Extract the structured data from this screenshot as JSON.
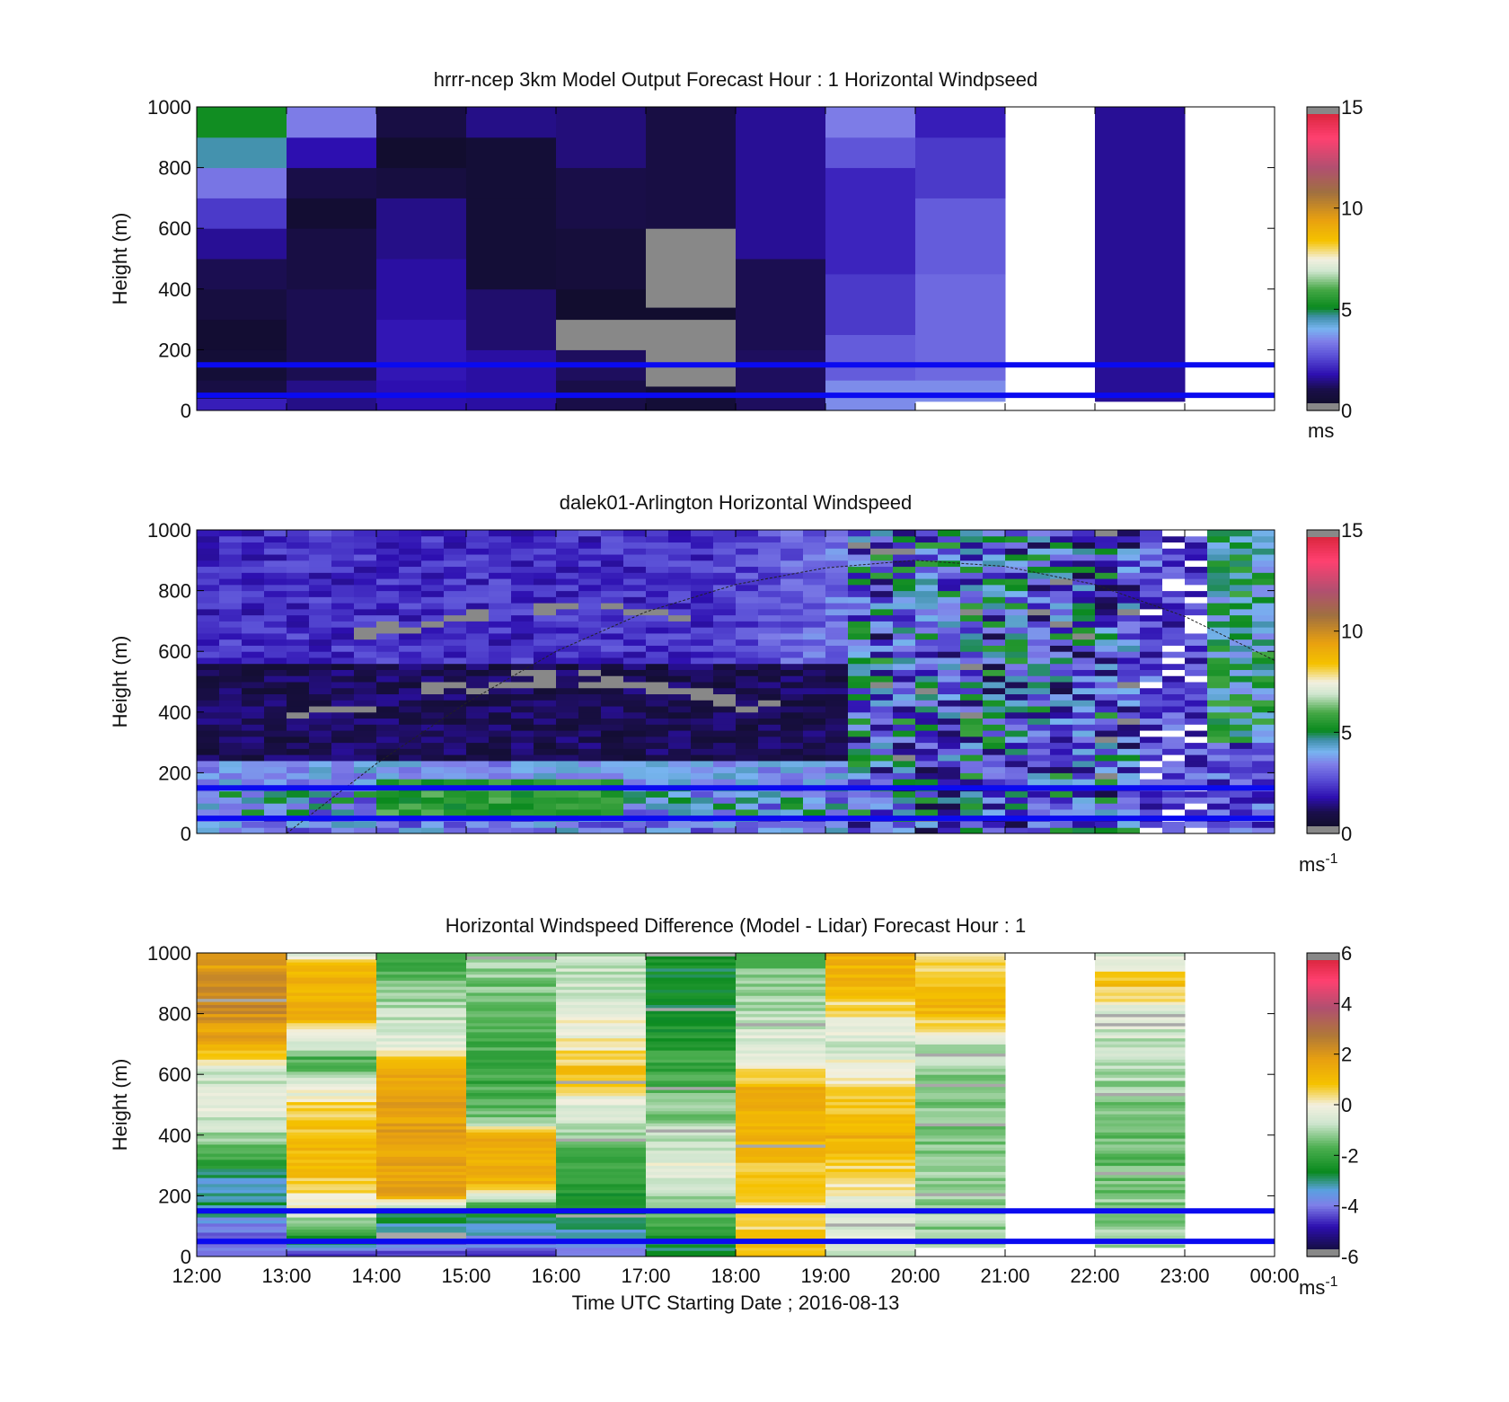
{
  "chart_data": [
    {
      "type": "heatmap",
      "title": "hrrr-ncep 3km Model Output   Forecast Hour : 1 Horizontal Windpseed",
      "ylabel": "Height (m)",
      "xlabel": "",
      "xlim": [
        "12:00",
        "00:00"
      ],
      "ylim": [
        0,
        1000
      ],
      "y_ticks": [
        "0",
        "200",
        "400",
        "600",
        "800",
        "1000"
      ],
      "colorbar": {
        "min": 0,
        "max": 15,
        "ticks": [
          "0",
          "5",
          "10",
          "15"
        ],
        "unit": "ms"
      },
      "hlines_m": [
        150,
        50
      ],
      "columns": [
        {
          "start_hour": 0,
          "top_m": 1000,
          "bands": [
            {
              "from": 0,
              "to": 40,
              "value": 2.0
            },
            {
              "from": 40,
              "to": 100,
              "value": 0.9
            },
            {
              "from": 100,
              "to": 200,
              "value": 0.6
            },
            {
              "from": 200,
              "to": 300,
              "value": 0.5
            },
            {
              "from": 300,
              "to": 400,
              "value": 0.8
            },
            {
              "from": 400,
              "to": 500,
              "value": 1.1
            },
            {
              "from": 500,
              "to": 600,
              "value": 1.6
            },
            {
              "from": 600,
              "to": 700,
              "value": 2.4
            },
            {
              "from": 700,
              "to": 800,
              "value": 3.3
            },
            {
              "from": 800,
              "to": 900,
              "value": 4.6
            },
            {
              "from": 900,
              "to": 1000,
              "value": 5.2
            }
          ]
        },
        {
          "start_hour": 1,
          "top_m": 1000,
          "bands": [
            {
              "from": 0,
              "to": 100,
              "value": 1.5
            },
            {
              "from": 100,
              "to": 400,
              "value": 1.1
            },
            {
              "from": 400,
              "to": 600,
              "value": 0.9
            },
            {
              "from": 600,
              "to": 700,
              "value": 0.5
            },
            {
              "from": 700,
              "to": 800,
              "value": 1.0
            },
            {
              "from": 800,
              "to": 900,
              "value": 1.8
            },
            {
              "from": 900,
              "to": 1000,
              "value": 3.4
            }
          ]
        },
        {
          "start_hour": 2,
          "top_m": 1000,
          "bands": [
            {
              "from": 0,
              "to": 100,
              "value": 1.8
            },
            {
              "from": 100,
              "to": 300,
              "value": 1.9
            },
            {
              "from": 300,
              "to": 500,
              "value": 1.7
            },
            {
              "from": 500,
              "to": 700,
              "value": 1.5
            },
            {
              "from": 700,
              "to": 800,
              "value": 0.8
            },
            {
              "from": 800,
              "to": 900,
              "value": 0.4
            },
            {
              "from": 900,
              "to": 1000,
              "value": 0.9
            }
          ]
        },
        {
          "start_hour": 3,
          "top_m": 1000,
          "bands": [
            {
              "from": 0,
              "to": 200,
              "value": 1.7
            },
            {
              "from": 200,
              "to": 400,
              "value": 1.3
            },
            {
              "from": 400,
              "to": 700,
              "value": 0.6
            },
            {
              "from": 700,
              "to": 900,
              "value": 0.6
            },
            {
              "from": 900,
              "to": 1000,
              "value": 1.5
            }
          ]
        },
        {
          "start_hour": 4,
          "top_m": 1000,
          "bands": [
            {
              "from": 0,
              "to": 100,
              "value": 1.0
            },
            {
              "from": 100,
              "to": 200,
              "value": 1.2
            },
            {
              "from": 200,
              "to": 300,
              "value": -1
            },
            {
              "from": 300,
              "to": 400,
              "value": 0.4
            },
            {
              "from": 400,
              "to": 600,
              "value": 0.7
            },
            {
              "from": 600,
              "to": 800,
              "value": 1.0
            },
            {
              "from": 800,
              "to": 1000,
              "value": 1.4
            }
          ]
        },
        {
          "start_hour": 5,
          "top_m": 1000,
          "bands": [
            {
              "from": 0,
              "to": 80,
              "value": 0.6
            },
            {
              "from": 80,
              "to": 300,
              "value": -1
            },
            {
              "from": 300,
              "to": 340,
              "value": 0.4
            },
            {
              "from": 340,
              "to": 600,
              "value": -1
            },
            {
              "from": 600,
              "to": 1000,
              "value": 0.9
            }
          ]
        },
        {
          "start_hour": 6,
          "top_m": 1000,
          "bands": [
            {
              "from": 0,
              "to": 200,
              "value": 1.2
            },
            {
              "from": 200,
              "to": 500,
              "value": 1.1
            },
            {
              "from": 500,
              "to": 1000,
              "value": 1.6
            }
          ]
        },
        {
          "start_hour": 7,
          "top_m": 1000,
          "bands": [
            {
              "from": 0,
              "to": 100,
              "value": 3.6
            },
            {
              "from": 100,
              "to": 250,
              "value": 2.9
            },
            {
              "from": 250,
              "to": 450,
              "value": 2.4
            },
            {
              "from": 450,
              "to": 800,
              "value": 2.1
            },
            {
              "from": 800,
              "to": 900,
              "value": 2.8
            },
            {
              "from": 900,
              "to": 1000,
              "value": 3.4
            }
          ]
        },
        {
          "start_hour": 8,
          "top_m": 1000,
          "bands": [
            {
              "from": 30,
              "to": 100,
              "value": 3.6
            },
            {
              "from": 100,
              "to": 450,
              "value": 3.1
            },
            {
              "from": 450,
              "to": 700,
              "value": 2.9
            },
            {
              "from": 700,
              "to": 900,
              "value": 2.4
            },
            {
              "from": 900,
              "to": 1000,
              "value": 2.0
            }
          ]
        },
        {
          "start_hour": 10,
          "top_m": 1000,
          "bands": [
            {
              "from": 30,
              "to": 1000,
              "value": 1.6
            }
          ]
        }
      ]
    },
    {
      "type": "heatmap",
      "title": "dalek01-Arlington  Horizontal Windspeed",
      "ylabel": "Height (m)",
      "xlabel": "",
      "xlim": [
        "12:00",
        "00:00"
      ],
      "ylim": [
        0,
        1000
      ],
      "y_ticks": [
        "0",
        "200",
        "400",
        "600",
        "800",
        "1000"
      ],
      "colorbar": {
        "min": 0,
        "max": 15,
        "ticks": [
          "0",
          "5",
          "10",
          "15"
        ],
        "unit": "ms-1"
      },
      "hlines_m": [
        150,
        50
      ],
      "dashed_curve": {
        "x_hours": [
          1,
          2,
          3,
          4,
          5,
          6,
          7,
          8,
          9,
          10,
          11,
          12
        ],
        "y_m": [
          0,
          230,
          430,
          600,
          730,
          820,
          875,
          900,
          880,
          820,
          715,
          570
        ]
      }
    },
    {
      "type": "heatmap",
      "title": "Horizontal Windspeed Difference (Model - Lidar) Forecast Hour : 1",
      "ylabel": "Height (m)",
      "xlabel": "Time UTC  Starting Date ; 2016-08-13",
      "xlim": [
        "12:00",
        "00:00"
      ],
      "ylim": [
        0,
        1000
      ],
      "x_ticks": [
        "12:00",
        "13:00",
        "14:00",
        "15:00",
        "16:00",
        "17:00",
        "18:00",
        "19:00",
        "20:00",
        "21:00",
        "22:00",
        "23:00",
        "00:00"
      ],
      "y_ticks": [
        "0",
        "200",
        "400",
        "600",
        "800",
        "1000"
      ],
      "colorbar": {
        "min": -6,
        "max": 6,
        "ticks": [
          "-6",
          "-4",
          "-2",
          "0",
          "2",
          "4",
          "6"
        ],
        "unit": "ms-1"
      },
      "hlines_m": [
        150,
        50
      ],
      "columns": [
        {
          "start_hour": 0,
          "profile": [
            [
              0,
              -4.2
            ],
            [
              100,
              -4.0
            ],
            [
              150,
              -3.0
            ],
            [
              250,
              -3.1
            ],
            [
              400,
              -1.0
            ],
            [
              500,
              -0.2
            ],
            [
              600,
              -0.8
            ],
            [
              700,
              1.5
            ],
            [
              850,
              2.4
            ],
            [
              1000,
              1.6
            ]
          ]
        },
        {
          "start_hour": 1,
          "profile": [
            [
              0,
              -4.5
            ],
            [
              150,
              -0.2
            ],
            [
              300,
              1.2
            ],
            [
              500,
              0.5
            ],
            [
              650,
              -1.8
            ],
            [
              800,
              1.5
            ],
            [
              950,
              1.2
            ],
            [
              1000,
              -0.3
            ]
          ]
        },
        {
          "start_hour": 2,
          "profile": [
            [
              0,
              -4.6
            ],
            [
              150,
              -2.4
            ],
            [
              200,
              1.8
            ],
            [
              600,
              1.6
            ],
            [
              700,
              -0.3
            ],
            [
              850,
              -1.0
            ],
            [
              1000,
              -2.1
            ]
          ]
        },
        {
          "start_hour": 3,
          "profile": [
            [
              0,
              -4.3
            ],
            [
              150,
              -2.5
            ],
            [
              250,
              1.4
            ],
            [
              400,
              1.4
            ],
            [
              450,
              -1.3
            ],
            [
              600,
              -2.0
            ],
            [
              800,
              -1.6
            ],
            [
              1000,
              -1.0
            ]
          ]
        },
        {
          "start_hour": 4,
          "profile": [
            [
              0,
              -4.1
            ],
            [
              150,
              -2.6
            ],
            [
              300,
              -2.0
            ],
            [
              500,
              -0.4
            ],
            [
              600,
              1.0
            ],
            [
              700,
              0.1
            ],
            [
              900,
              -0.7
            ],
            [
              1000,
              -0.9
            ]
          ]
        },
        {
          "start_hour": 5,
          "profile": [
            [
              0,
              -3.0
            ],
            [
              300,
              -0.3
            ],
            [
              500,
              -1.4
            ],
            [
              700,
              -2.2
            ],
            [
              900,
              -2.8
            ],
            [
              1000,
              -2.6
            ]
          ]
        },
        {
          "start_hour": 6,
          "profile": [
            [
              0,
              1.2
            ],
            [
              150,
              0.3
            ],
            [
              400,
              1.3
            ],
            [
              550,
              1.4
            ],
            [
              650,
              -0.3
            ],
            [
              800,
              -0.8
            ],
            [
              1000,
              -1.6
            ]
          ]
        },
        {
          "start_hour": 7,
          "profile": [
            [
              0,
              -0.6
            ],
            [
              150,
              -0.3
            ],
            [
              400,
              1.3
            ],
            [
              700,
              -0.6
            ],
            [
              900,
              1.1
            ],
            [
              1000,
              1.4
            ]
          ]
        },
        {
          "start_hour": 8,
          "profile": [
            [
              30,
              -1.2
            ],
            [
              200,
              -1.1
            ],
            [
              500,
              -1.4
            ],
            [
              700,
              -0.9
            ],
            [
              800,
              1.2
            ],
            [
              1000,
              0.4
            ]
          ]
        },
        {
          "start_hour": 10,
          "profile": [
            [
              30,
              -1.0
            ],
            [
              400,
              -1.6
            ],
            [
              800,
              -0.5
            ],
            [
              900,
              0.9
            ],
            [
              1000,
              -0.6
            ]
          ]
        }
      ]
    }
  ]
}
